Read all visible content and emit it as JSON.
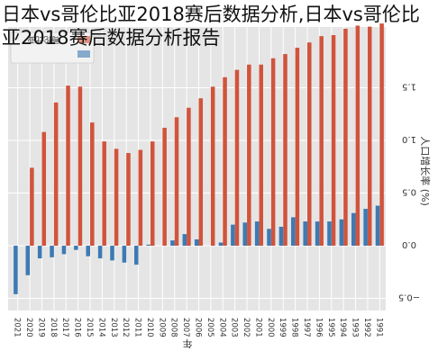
{
  "page": {
    "title": "日本vs哥伦比亚2018赛后数据分析,日本vs哥伦比亚2018赛后数据分析报告"
  },
  "chart_data": {
    "type": "bar",
    "orientation": "rotated-180",
    "categories": [
      "2021",
      "2020",
      "2019",
      "2018",
      "2017",
      "2016",
      "2015",
      "2014",
      "2013",
      "2012",
      "2011",
      "2010",
      "2009",
      "2008",
      "2007",
      "2006",
      "2005",
      "2004",
      "2003",
      "2002",
      "2001",
      "2000",
      "1999",
      "1998",
      "1997",
      "1996",
      "1995",
      "1994",
      "1993",
      "1992",
      "1991"
    ],
    "series": [
      {
        "name": "哥伦比亚",
        "color": "#d0543c",
        "values": [
          0.0,
          0.74,
          1.08,
          1.36,
          1.52,
          1.51,
          1.17,
          0.99,
          0.92,
          0.88,
          0.91,
          0.99,
          1.12,
          1.22,
          1.31,
          1.4,
          1.51,
          1.6,
          1.67,
          1.72,
          1.72,
          1.78,
          1.82,
          1.88,
          1.93,
          1.99,
          2.0,
          2.06,
          2.09,
          2.08,
          2.11
        ]
      },
      {
        "name": "",
        "color": "#3d7ab3",
        "values": [
          -0.46,
          -0.28,
          -0.12,
          -0.11,
          -0.08,
          -0.04,
          -0.1,
          -0.12,
          -0.14,
          -0.16,
          -0.18,
          0.01,
          0.0,
          0.05,
          0.11,
          0.06,
          0.0,
          0.03,
          0.2,
          0.22,
          0.23,
          0.16,
          0.18,
          0.27,
          0.23,
          0.23,
          0.23,
          0.25,
          0.31,
          0.35,
          0.38
        ]
      }
    ],
    "xlabel": "年",
    "ylabel": "人口增长率 (%)",
    "ylim": [
      -0.62,
      2.2
    ],
    "yticks": [
      "1.5",
      "1.0",
      "0.5",
      "0.0",
      "−0.5"
    ],
    "ytick_values": [
      1.5,
      1.0,
      0.5,
      0.0,
      -0.5
    ],
    "grid": true,
    "legend_position": "bottom-left",
    "colors": {
      "background": "#e5e5e5",
      "grid": "#ffffff",
      "bar_a": "#d0543c",
      "bar_b": "#3d7ab3",
      "text": "#333333"
    }
  }
}
